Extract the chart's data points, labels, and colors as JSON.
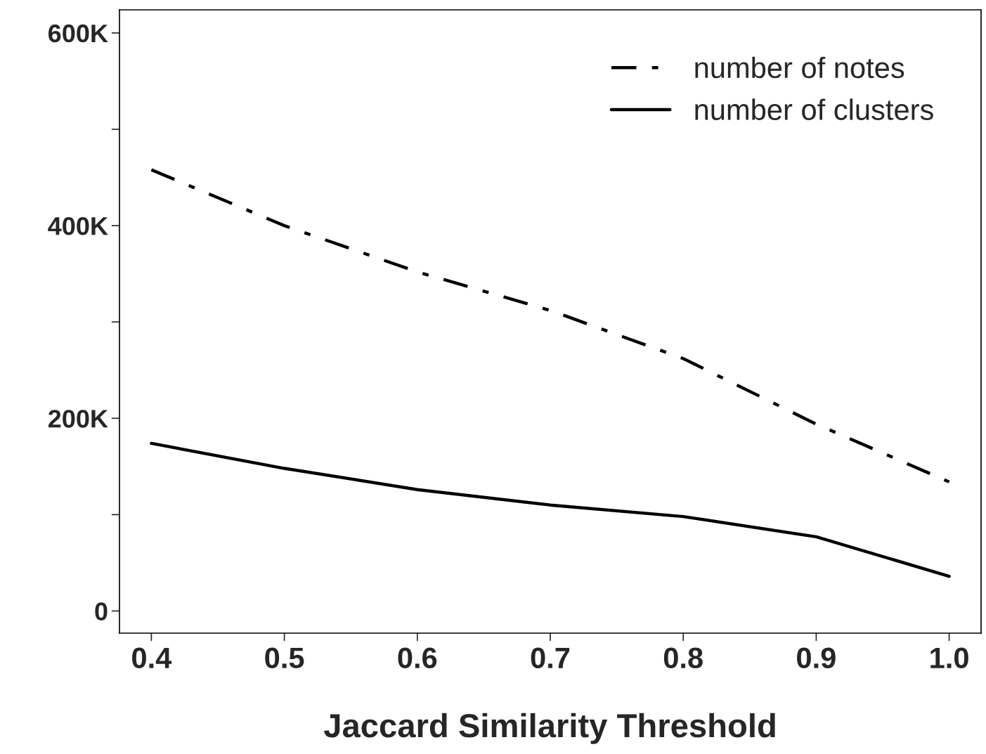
{
  "chart_data": {
    "type": "line",
    "xlabel": "Jaccard Similarity Threshold",
    "x": [
      0.4,
      0.5,
      0.6,
      0.7,
      0.8,
      0.9,
      1.0
    ],
    "series": [
      {
        "name": "number of notes",
        "color": "#000000",
        "line_style": "dashed",
        "values": [
          458000,
          400000,
          352000,
          312000,
          262000,
          194000,
          134000
        ]
      },
      {
        "name": "number of clusters",
        "color": "#000000",
        "line_style": "solid",
        "values": [
          174000,
          148000,
          126000,
          110000,
          98000,
          77000,
          36000
        ]
      }
    ],
    "xlim": [
      0.376,
      1.024
    ],
    "xticks": [
      {
        "value": 0.4,
        "label": "0.4"
      },
      {
        "value": 0.5,
        "label": "0.5"
      },
      {
        "value": 0.6,
        "label": "0.6"
      },
      {
        "value": 0.7,
        "label": "0.7"
      },
      {
        "value": 0.8,
        "label": "0.8"
      },
      {
        "value": 0.9,
        "label": "0.9"
      },
      {
        "value": 1.0,
        "label": "1.0"
      }
    ],
    "ylim": [
      -23000,
      624000
    ],
    "yticks": [
      {
        "value": 0,
        "label": "0"
      },
      {
        "value": 100000,
        "label": null
      },
      {
        "value": 200000,
        "label": "200K"
      },
      {
        "value": 300000,
        "label": null
      },
      {
        "value": 400000,
        "label": "400K"
      },
      {
        "value": 500000,
        "label": null
      },
      {
        "value": 600000,
        "label": "600K"
      }
    ],
    "grid": false,
    "legend": "top right",
    "marker": "none"
  }
}
